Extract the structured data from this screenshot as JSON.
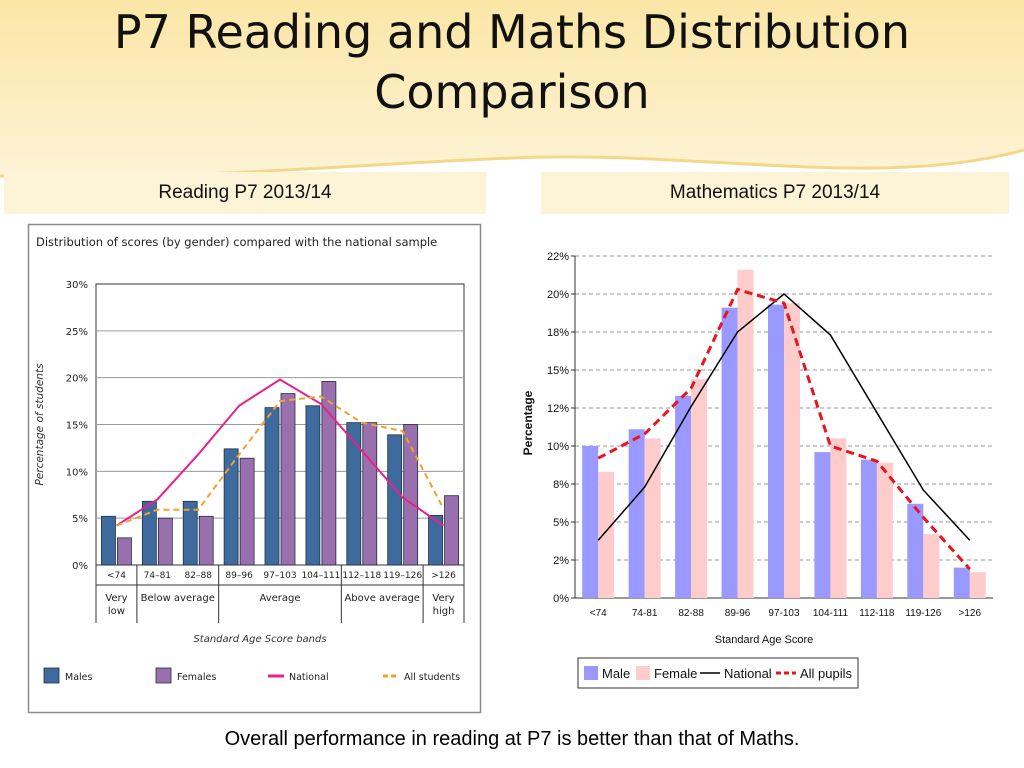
{
  "slide": {
    "title_line1": "P7 Reading and Maths Distribution",
    "title_line2": "Comparison",
    "left_heading": "Reading P7 2013/14",
    "right_heading": "Mathematics P7 2013/14",
    "caption": "Overall performance in reading at P7 is better than that of Maths."
  },
  "chart_data": [
    {
      "type": "bar",
      "title": "Distribution of scores (by gender) compared with the national sample",
      "xlabel": "Standard Age Score bands",
      "ylabel": "Percentage of students",
      "ylim": [
        0,
        30
      ],
      "yticks": [
        "0%",
        "5%",
        "10%",
        "15%",
        "20%",
        "25%",
        "30%"
      ],
      "categories": [
        "<74",
        "74–81",
        "82–88",
        "89–96",
        "97–103",
        "104–111",
        "112–118",
        "119–126",
        ">126"
      ],
      "groups": [
        "Very low",
        "Below average",
        "Average",
        "Above average",
        "Very high"
      ],
      "grid": true,
      "legend_position": "bottom",
      "series": [
        {
          "name": "Males",
          "type": "bar",
          "color": "#3e6a9e",
          "values": [
            5.2,
            6.8,
            6.8,
            12.4,
            16.8,
            17.0,
            15.2,
            13.9,
            5.3
          ]
        },
        {
          "name": "Females",
          "type": "bar",
          "color": "#9a6fae",
          "values": [
            2.9,
            5.0,
            5.2,
            11.4,
            18.3,
            19.6,
            15.2,
            15.0,
            7.4
          ]
        },
        {
          "name": "National",
          "type": "line",
          "color": "#e8208c",
          "values": [
            4.2,
            7.0,
            11.8,
            17.0,
            19.8,
            17.2,
            12.2,
            7.2,
            4.2
          ]
        },
        {
          "name": "All students",
          "type": "line",
          "color": "#f5a02a",
          "values": [
            4.2,
            5.9,
            5.9,
            11.8,
            17.5,
            18.0,
            15.2,
            14.3,
            6.0
          ]
        }
      ]
    },
    {
      "type": "bar",
      "title": "",
      "xlabel": "Standard Age Score",
      "ylabel": "Percentage",
      "ylim": [
        0,
        22.5
      ],
      "yticks": [
        "0%",
        "2%",
        "5%",
        "8%",
        "10%",
        "12%",
        "15%",
        "18%",
        "20%",
        "22%"
      ],
      "categories": [
        "<74",
        "74-81",
        "82-88",
        "89-96",
        "97-103",
        "104-111",
        "112-118",
        "119-126",
        ">126"
      ],
      "grid": true,
      "legend_position": "bottom",
      "series": [
        {
          "name": "Male",
          "type": "bar",
          "color": "#9999ff",
          "values": [
            10.0,
            11.1,
            13.3,
            19.1,
            19.3,
            9.6,
            9.1,
            6.2,
            2.0
          ]
        },
        {
          "name": "Female",
          "type": "bar",
          "color": "#ffcccc",
          "values": [
            8.3,
            10.5,
            14.4,
            21.6,
            19.4,
            10.5,
            8.9,
            4.2,
            1.7
          ]
        },
        {
          "name": "National",
          "type": "line",
          "color": "#000000",
          "values": [
            3.8,
            7.3,
            12.6,
            17.5,
            20.0,
            17.3,
            12.2,
            7.1,
            3.8
          ]
        },
        {
          "name": "All pupils",
          "type": "line",
          "color": "#e8141e",
          "values": [
            9.2,
            10.8,
            13.8,
            20.3,
            19.4,
            10.0,
            9.0,
            5.3,
            1.9
          ]
        }
      ]
    }
  ]
}
